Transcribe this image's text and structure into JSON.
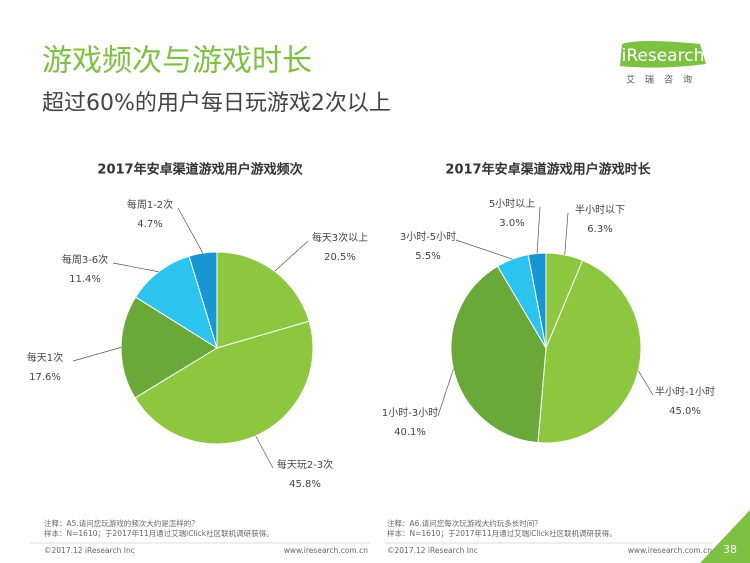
{
  "header": {
    "title": "游戏频次与游戏时长",
    "subtitle": "超过60%的用户每日玩游戏2次以上"
  },
  "logo": {
    "brand": "iResearch",
    "tagline": "艾瑞咨询"
  },
  "chart_data": [
    {
      "type": "pie",
      "title": "2017年安卓渠道游戏用户游戏频次",
      "categories": [
        "每天3次以上",
        "每天玩2-3次",
        "每天1次",
        "每周3-6次",
        "每周1-2次"
      ],
      "values": [
        20.5,
        45.8,
        17.6,
        11.4,
        4.7
      ],
      "value_labels": [
        "20.5%",
        "45.8%",
        "17.6%",
        "11.4%",
        "4.7%"
      ],
      "colors": [
        "#8dc63f",
        "#8dc63f",
        "#6aa83a",
        "#2cc3ee",
        "#1896d4"
      ]
    },
    {
      "type": "pie",
      "title": "2017年安卓渠道游戏用户游戏时长",
      "categories": [
        "半小时以下",
        "半小时-1小时",
        "1小时-3小时",
        "3小时-5小时",
        "5小时以上"
      ],
      "values": [
        6.3,
        45.0,
        40.1,
        5.5,
        3.0
      ],
      "value_labels": [
        "6.3%",
        "45.0%",
        "40.1%",
        "5.5%",
        "3.0%"
      ],
      "colors": [
        "#8dc63f",
        "#8dc63f",
        "#6aa83a",
        "#2cc3ee",
        "#1896d4"
      ]
    }
  ],
  "notes": [
    {
      "note": "注释：A5.请问您玩游戏的频次大约是怎样的？",
      "sample": "样本：N=1610；于2017年11月通过艾瑞iClick社区联机调研获得。"
    },
    {
      "note": "注释：A6.请问您每次玩游戏大约玩多长时间？",
      "sample": "样本：N=1610；于2017年11月通过艾瑞iClick社区联机调研获得。"
    }
  ],
  "footer": [
    {
      "copyright": "©2017.12 iResearch Inc",
      "url": "www.iresearch.com.cn"
    },
    {
      "copyright": "©2017.12 iResearch Inc",
      "url": "www.iresearch.com.cn"
    }
  ],
  "page_number": "38"
}
